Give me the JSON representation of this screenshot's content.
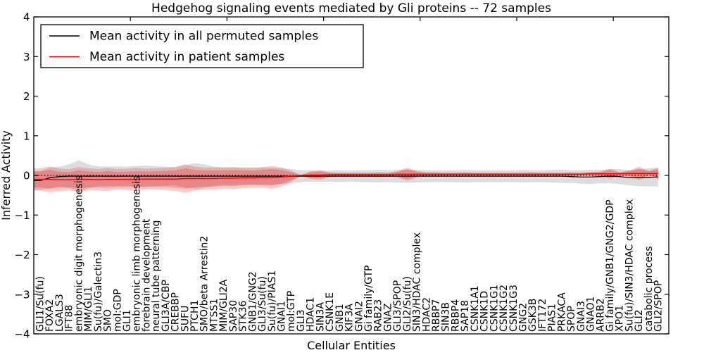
{
  "figure": {
    "title": "Hedgehog signaling events mediated by Gli proteins -- 72 samples",
    "xlabel": "Cellular Entities",
    "ylabel": "Inferred Activity"
  },
  "legend": {
    "position": "upper left",
    "entries": [
      {
        "label": "Mean activity in all permuted samples",
        "color": "#000000"
      },
      {
        "label": "Mean activity in patient samples",
        "color": "#ff0000"
      }
    ]
  },
  "chart_data": {
    "type": "line",
    "title": "Hedgehog signaling events mediated by Gli proteins -- 72 samples",
    "xlabel": "Cellular Entities",
    "ylabel": "Inferred Activity",
    "samples": 72,
    "ylim": [
      -4,
      4
    ],
    "yticks": [
      4,
      3,
      2,
      1,
      0,
      -1,
      -2,
      -3,
      -4
    ],
    "grid": false,
    "legend_position": "upper left",
    "x_top_ticks": [
      10,
      20,
      30,
      40,
      50,
      60
    ],
    "band_colors": {
      "permuted": "#808080",
      "patient": "#ff0000",
      "patient_inner": "#dd2222"
    },
    "reference_line": {
      "y": 0,
      "style": "dotted",
      "color": "#000000"
    },
    "categories": [
      "GLI1/Su(fu)",
      "FOXA2",
      "LGALS3",
      "IFT88",
      "embryonic digit morphogenesis",
      "MIM/GLI1",
      "Su(fu)/Galectin3",
      "SMO",
      "mol:GDP",
      "GLI1",
      "embryonic limb morphogenesis",
      "forebrain development",
      "neural tube patterning",
      "GLI3A/CBP",
      "CREBBP",
      "SUFU",
      "PTCH1",
      "SMO/beta Arrestin2",
      "MTSS1",
      "MIM/GLI2A",
      "SAP30",
      "STK36",
      "GNB1/GNG2",
      "GLI3/Su(fu)",
      "Su(fu)/PIAS1",
      "GNAI1",
      "mol:GTP",
      "GLI3",
      "HDAC1",
      "SIN3A",
      "CSNK1E",
      "GNB1",
      "KIF3A",
      "GNAI2",
      "Gi family/GTP",
      "RAB23",
      "GNAZ",
      "GLI3/SPOP",
      "GLI2/Su(fu)",
      "SIN3/HDAC complex",
      "HDAC2",
      "RBBP7",
      "SIN3B",
      "RBBP4",
      "SAP18",
      "CSNK1A1",
      "CSNK1D",
      "CSNK1G1",
      "CSNK1G2",
      "CSNK1G3",
      "GNG2",
      "GSK3B",
      "IFT172",
      "PIAS1",
      "PRKACA",
      "SPOP",
      "GNAI3",
      "GNAO1",
      "ARRB2",
      "Gi family/GNB1/GNG2/GDP",
      "XPO1",
      "Su(fu)/SIN3/HDAC complex",
      "GLI2",
      "catabolic process",
      "GLI2/SPOP"
    ],
    "series": [
      {
        "name": "Mean activity in all permuted samples",
        "color": "#000000",
        "values": [
          -0.13,
          -0.06,
          -0.03,
          -0.02,
          -0.02,
          -0.02,
          -0.02,
          -0.02,
          -0.02,
          -0.02,
          -0.02,
          -0.02,
          -0.02,
          -0.02,
          -0.02,
          -0.02,
          -0.02,
          -0.02,
          -0.02,
          -0.02,
          -0.02,
          -0.02,
          -0.02,
          -0.02,
          -0.02,
          -0.02,
          -0.02,
          -0.02,
          -0.02,
          -0.02,
          -0.02,
          -0.02,
          -0.02,
          -0.02,
          -0.02,
          -0.02,
          -0.02,
          -0.02,
          -0.02,
          -0.02,
          -0.02,
          -0.02,
          -0.02,
          -0.02,
          -0.02,
          -0.02,
          -0.02,
          -0.02,
          -0.02,
          -0.02,
          -0.02,
          -0.02,
          -0.02,
          -0.02,
          -0.02,
          -0.03,
          -0.04,
          -0.04,
          -0.03,
          -0.02,
          -0.03,
          -0.06,
          -0.06,
          -0.05,
          -0.04
        ],
        "band_halfwidth": [
          0.24,
          0.26,
          0.25,
          0.3,
          0.4,
          0.3,
          0.25,
          0.24,
          0.25,
          0.24,
          0.26,
          0.27,
          0.25,
          0.24,
          0.23,
          0.28,
          0.33,
          0.3,
          0.24,
          0.22,
          0.22,
          0.21,
          0.22,
          0.22,
          0.21,
          0.2,
          0.18,
          0.15,
          0.14,
          0.14,
          0.14,
          0.15,
          0.14,
          0.15,
          0.15,
          0.16,
          0.15,
          0.16,
          0.17,
          0.16,
          0.15,
          0.15,
          0.15,
          0.15,
          0.16,
          0.15,
          0.15,
          0.15,
          0.15,
          0.15,
          0.16,
          0.15,
          0.15,
          0.16,
          0.17,
          0.16,
          0.17,
          0.18,
          0.17,
          0.18,
          0.19,
          0.19,
          0.21,
          0.23,
          0.24
        ]
      },
      {
        "name": "Mean activity in patient samples",
        "color": "#ff0000",
        "values": [
          -0.1,
          -0.1,
          -0.11,
          -0.11,
          -0.1,
          -0.1,
          -0.11,
          -0.1,
          -0.1,
          -0.1,
          -0.1,
          -0.09,
          -0.09,
          -0.09,
          -0.09,
          -0.08,
          -0.08,
          -0.08,
          -0.08,
          -0.07,
          -0.07,
          -0.06,
          -0.06,
          -0.05,
          -0.05,
          -0.04,
          -0.02,
          0.0,
          0.01,
          0.01,
          0.02,
          0.02,
          0.02,
          0.02,
          0.02,
          0.02,
          0.02,
          0.03,
          0.03,
          0.03,
          0.03,
          0.03,
          0.03,
          0.03,
          0.03,
          0.03,
          0.03,
          0.03,
          0.03,
          0.03,
          0.03,
          0.03,
          0.03,
          0.03,
          0.03,
          0.03,
          0.03,
          0.04,
          0.04,
          0.04,
          0.04,
          0.05,
          0.05,
          0.05,
          0.05
        ],
        "band_halfwidth": [
          0.28,
          0.33,
          0.28,
          0.27,
          0.31,
          0.28,
          0.27,
          0.29,
          0.26,
          0.27,
          0.29,
          0.26,
          0.27,
          0.28,
          0.3,
          0.36,
          0.3,
          0.28,
          0.28,
          0.27,
          0.28,
          0.26,
          0.25,
          0.26,
          0.29,
          0.24,
          0.14,
          0.01,
          0.1,
          0.12,
          0.06,
          0.05,
          0.05,
          0.05,
          0.05,
          0.06,
          0.05,
          0.08,
          0.17,
          0.08,
          0.05,
          0.05,
          0.04,
          0.04,
          0.05,
          0.04,
          0.04,
          0.04,
          0.04,
          0.04,
          0.04,
          0.05,
          0.04,
          0.04,
          0.04,
          0.05,
          0.04,
          0.05,
          0.06,
          0.13,
          0.05,
          0.08,
          0.17,
          0.07,
          0.14
        ]
      }
    ]
  }
}
